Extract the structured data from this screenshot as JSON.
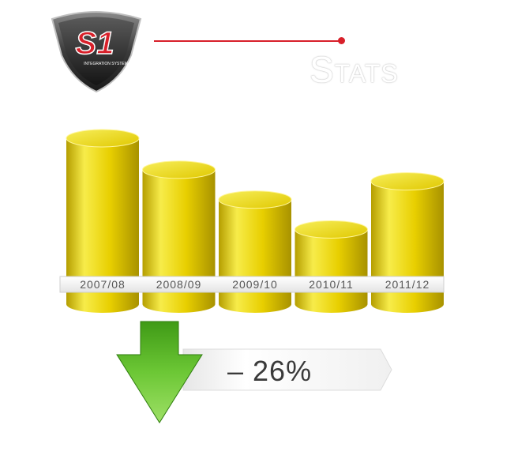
{
  "header": {
    "logo_text": "S1",
    "logo_subtext": "INTEGRATION SYSTEM",
    "title": "Stats"
  },
  "chart_data": {
    "type": "bar",
    "style": "3d-cylinder",
    "categories": [
      "2007/08",
      "2008/09",
      "2009/10",
      "2010/11",
      "2011/12"
    ],
    "values": [
      100,
      81,
      63,
      45,
      74
    ],
    "ylim": [
      0,
      100
    ],
    "grid": false,
    "legend": "none",
    "colors": {
      "bar": "#e8cf00",
      "bar_light": "#f7ec4a",
      "bar_dark": "#b59e00",
      "top": "#f2e23a"
    }
  },
  "change": {
    "value": "– 26%",
    "direction": "down",
    "arrow_color": "#4caf1f"
  }
}
